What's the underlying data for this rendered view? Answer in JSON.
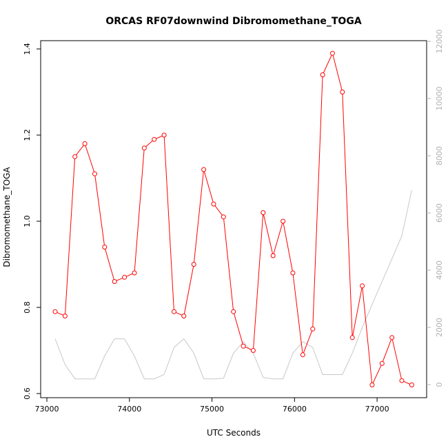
{
  "chart_data": {
    "type": "line",
    "title": "ORCAS RF07downwind Dibromomethane_TOGA",
    "xlabel": "UTC Seconds",
    "ylabel": "Dibromomethane_TOGA",
    "xlim": [
      73000,
      77500
    ],
    "ylim": [
      0.6,
      1.4
    ],
    "y2lim": [
      0,
      12000
    ],
    "x_ticks": [
      73000,
      74000,
      75000,
      76000,
      77000
    ],
    "y_ticks": [
      0.6,
      0.8,
      1.0,
      1.2,
      1.4
    ],
    "y2_ticks": [
      0,
      2000,
      4000,
      6000,
      8000,
      10000,
      12000
    ],
    "x_tick_labels": [
      "73000",
      "74000",
      "75000",
      "76000",
      "77000"
    ],
    "y_tick_labels": [
      "0.6",
      "0.8",
      "1.0",
      "1.2",
      "1.4"
    ],
    "y2_tick_labels": [
      "0",
      "2000",
      "4000",
      "6000",
      "8000",
      "10000",
      "12000"
    ],
    "grid": false,
    "series": [
      {
        "axis": "left",
        "color": "#ff0000",
        "style": "line+points",
        "x": [
          73100,
          73220,
          73340,
          73460,
          73580,
          73700,
          73820,
          73940,
          74060,
          74180,
          74300,
          74420,
          74540,
          74660,
          74780,
          74900,
          75020,
          75140,
          75260,
          75380,
          75500,
          75620,
          75740,
          75860,
          75980,
          76100,
          76220,
          76340,
          76460,
          76580,
          76700,
          76820,
          76940,
          77060,
          77180,
          77300,
          77420
        ],
        "y": [
          0.79,
          0.78,
          1.15,
          1.18,
          1.11,
          0.94,
          0.86,
          0.87,
          0.88,
          1.17,
          1.19,
          1.2,
          0.79,
          0.78,
          0.9,
          1.12,
          1.04,
          1.01,
          0.79,
          0.71,
          0.7,
          1.02,
          0.92,
          1.0,
          0.88,
          0.69,
          0.75,
          1.34,
          1.39,
          1.3,
          0.73,
          0.85,
          0.62,
          0.67,
          0.73,
          0.63,
          0.62
        ]
      },
      {
        "axis": "right",
        "color": "#c8c8c8",
        "style": "line",
        "x": [
          73100,
          73220,
          73340,
          73460,
          73580,
          73700,
          73820,
          73940,
          74060,
          74180,
          74300,
          74420,
          74540,
          74660,
          74780,
          74900,
          75020,
          75140,
          75260,
          75380,
          75500,
          75620,
          75740,
          75860,
          75980,
          76100,
          76220,
          76340,
          76460,
          76580,
          76700,
          76820,
          76940,
          77060,
          77180,
          77300,
          77420
        ],
        "y": [
          1600,
          700,
          200,
          200,
          200,
          1000,
          1600,
          1600,
          1000,
          200,
          200,
          350,
          1300,
          1600,
          1100,
          200,
          200,
          220,
          1100,
          1500,
          1100,
          250,
          200,
          200,
          1100,
          1500,
          1300,
          350,
          350,
          350,
          1100,
          2000,
          2800,
          3600,
          4400,
          5200,
          6800
        ]
      }
    ]
  }
}
